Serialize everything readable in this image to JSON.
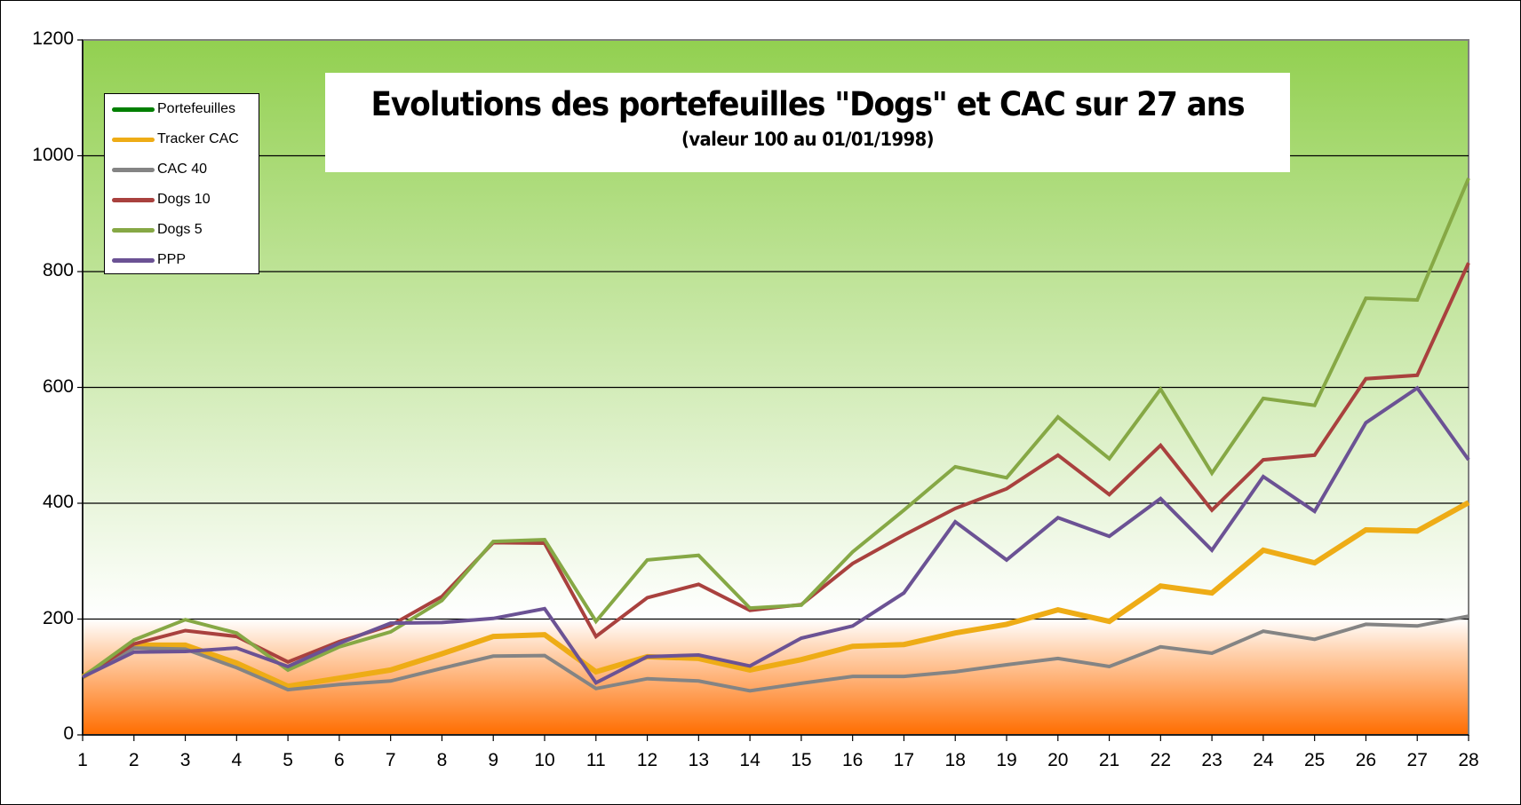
{
  "chart_data": {
    "type": "line",
    "title": "Evolutions des portefeuilles \"Dogs\" et CAC sur  27 ans",
    "subtitle": "(valeur 100 au 01/01/1998)",
    "xlabel": "",
    "ylabel": "",
    "x": [
      1,
      2,
      3,
      4,
      5,
      6,
      7,
      8,
      9,
      10,
      11,
      12,
      13,
      14,
      15,
      16,
      17,
      18,
      19,
      20,
      21,
      22,
      23,
      24,
      25,
      26,
      27,
      28
    ],
    "ylim": [
      0,
      1200
    ],
    "yticks": [
      0,
      200,
      400,
      600,
      800,
      1000,
      1200
    ],
    "grid": true,
    "legend_position": "upper-left",
    "background_gradient": {
      "top": "#92d050",
      "middle": "#ffffff",
      "bottom": "#ff6d00",
      "split_value": 200
    },
    "series": [
      {
        "name": "Portefeuilles",
        "color": "#007f00",
        "width": 5,
        "values": []
      },
      {
        "name": "Tracker CAC",
        "color": "#eeac16",
        "width": 6,
        "values": [
          100,
          155,
          155,
          124,
          84,
          98,
          112,
          140,
          170,
          173,
          109,
          135,
          132,
          112,
          130,
          153,
          156,
          176,
          191,
          216,
          196,
          257,
          245,
          319,
          297,
          354,
          352,
          401
        ]
      },
      {
        "name": "CAC 40",
        "color": "#848484",
        "width": 4,
        "values": [
          100,
          150,
          148,
          116,
          78,
          87,
          93,
          115,
          136,
          137,
          80,
          97,
          93,
          76,
          89,
          101,
          101,
          109,
          121,
          132,
          118,
          152,
          141,
          179,
          165,
          191,
          188,
          205
        ]
      },
      {
        "name": "Dogs 10",
        "color": "#a9413e",
        "width": 4,
        "values": [
          100,
          157,
          180,
          170,
          126,
          161,
          189,
          239,
          332,
          331,
          170,
          237,
          260,
          215,
          225,
          296,
          345,
          391,
          425,
          483,
          415,
          500,
          388,
          475,
          483,
          615,
          621,
          815
        ]
      },
      {
        "name": "Dogs 5",
        "color": "#86a845",
        "width": 4,
        "values": [
          100,
          164,
          199,
          176,
          112,
          152,
          178,
          232,
          334,
          337,
          196,
          302,
          310,
          219,
          224,
          316,
          388,
          463,
          444,
          549,
          477,
          597,
          452,
          581,
          569,
          754,
          751,
          961
        ]
      },
      {
        "name": "PPP",
        "color": "#6b5294",
        "width": 4,
        "values": [
          100,
          143,
          144,
          150,
          118,
          158,
          193,
          194,
          201,
          218,
          90,
          135,
          138,
          119,
          167,
          188,
          245,
          368,
          302,
          375,
          343,
          408,
          319,
          446,
          386,
          539,
          599,
          475
        ]
      }
    ]
  },
  "legend": {
    "items": [
      {
        "label": "Portefeuilles",
        "color": "#007f00"
      },
      {
        "label": "Tracker CAC",
        "color": "#eeac16"
      },
      {
        "label": "CAC 40",
        "color": "#848484"
      },
      {
        "label": "Dogs 10",
        "color": "#a9413e"
      },
      {
        "label": "Dogs 5",
        "color": "#86a845"
      },
      {
        "label": "PPP",
        "color": "#6b5294"
      }
    ]
  }
}
